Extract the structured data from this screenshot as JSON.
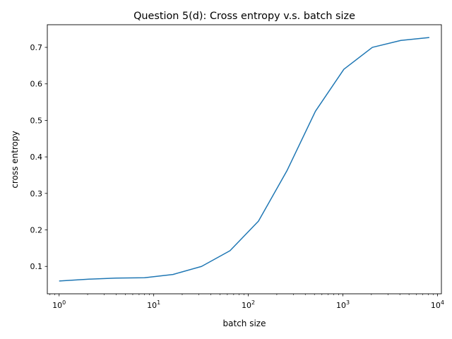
{
  "chart_data": {
    "type": "line",
    "title": "Question 5(d): Cross entropy v.s. batch size",
    "xlabel": "batch size",
    "ylabel": "cross entropy",
    "xscale": "log",
    "xlim": [
      0.75,
      11000
    ],
    "ylim": [
      0.025,
      0.762
    ],
    "grid": false,
    "series": [
      {
        "name": "",
        "color": "#1f77b4",
        "x": [
          1,
          2,
          4,
          8,
          16,
          32,
          64,
          128,
          256,
          512,
          1024,
          2048,
          4096,
          8192
        ],
        "y": [
          0.06,
          0.065,
          0.068,
          0.069,
          0.078,
          0.1,
          0.143,
          0.224,
          0.362,
          0.525,
          0.64,
          0.7,
          0.719,
          0.727
        ]
      }
    ],
    "xticks": [
      {
        "value": 1,
        "base": "10",
        "exp": "0"
      },
      {
        "value": 10,
        "base": "10",
        "exp": "1"
      },
      {
        "value": 100,
        "base": "10",
        "exp": "2"
      },
      {
        "value": 1000,
        "base": "10",
        "exp": "3"
      },
      {
        "value": 10000,
        "base": "10",
        "exp": "4"
      }
    ],
    "yticks": [
      {
        "value": 0.1,
        "label": "0.1"
      },
      {
        "value": 0.2,
        "label": "0.2"
      },
      {
        "value": 0.3,
        "label": "0.3"
      },
      {
        "value": 0.4,
        "label": "0.4"
      },
      {
        "value": 0.5,
        "label": "0.5"
      },
      {
        "value": 0.6,
        "label": "0.6"
      },
      {
        "value": 0.7,
        "label": "0.7"
      }
    ]
  }
}
